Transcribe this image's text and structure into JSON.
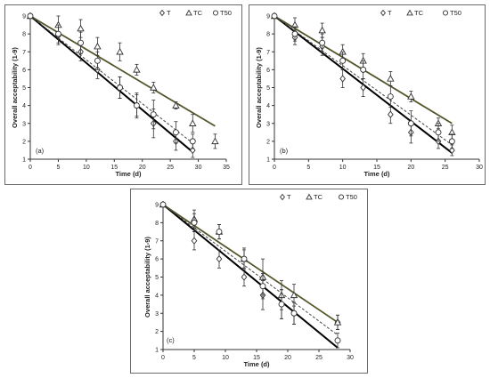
{
  "colors": {
    "T": "#000000",
    "TC": "#55552b",
    "T50": "#444444",
    "marker": "#333333",
    "axis": "#333333",
    "frame": "#6b6b6b"
  },
  "chart_data": [
    {
      "id": "a",
      "type": "scatter",
      "panel_label": "(a)",
      "xlabel": "Time (d)",
      "ylabel": "Overall acceptability (1-9)",
      "xlim": [
        0,
        35
      ],
      "ylim": [
        1,
        9
      ],
      "xticks": [
        "0",
        "5",
        "10",
        "15",
        "20",
        "25",
        "30",
        "35"
      ],
      "yticks": [
        "1",
        "2",
        "3",
        "4",
        "5",
        "6",
        "7",
        "8",
        "9"
      ],
      "legend": [
        "T",
        "TC",
        "T50"
      ],
      "legend_position": "top-right",
      "series": [
        {
          "name": "T",
          "marker": "diamond",
          "x": [
            0,
            5,
            9,
            12,
            16,
            19,
            22,
            26,
            29
          ],
          "y": [
            9,
            7.9,
            7.0,
            6.0,
            5.0,
            4.0,
            3.0,
            2.0,
            1.5
          ],
          "err": [
            0,
            0.5,
            0.5,
            0.5,
            0.6,
            0.6,
            0.8,
            0.5,
            0.4
          ],
          "fit": [
            [
              0,
              9.0
            ],
            [
              29,
              1.4
            ]
          ],
          "line": "solid-thick"
        },
        {
          "name": "TC",
          "marker": "triangle",
          "x": [
            0,
            5,
            9,
            12,
            16,
            19,
            22,
            26,
            29,
            33
          ],
          "y": [
            9,
            8.5,
            8.3,
            7.3,
            7.0,
            6.0,
            5.0,
            4.0,
            3.0,
            2.0
          ],
          "err": [
            0,
            0.5,
            0.5,
            0.5,
            0.5,
            0.3,
            0.3,
            0.2,
            0.5,
            0.4
          ],
          "fit": [
            [
              0,
              9.0
            ],
            [
              33,
              2.85
            ]
          ],
          "line": "solid"
        },
        {
          "name": "T50",
          "marker": "circle",
          "x": [
            0,
            5,
            9,
            12,
            16,
            19,
            22,
            26,
            29
          ],
          "y": [
            9,
            8.0,
            7.5,
            6.5,
            5.0,
            4.0,
            3.5,
            2.5,
            2.0
          ],
          "err": [
            0,
            0.5,
            0.6,
            0.5,
            0.6,
            0.7,
            0.8,
            0.6,
            0.4
          ],
          "fit": [
            [
              0,
              9.0
            ],
            [
              29,
              1.9
            ]
          ],
          "line": "dashed"
        }
      ]
    },
    {
      "id": "b",
      "type": "scatter",
      "panel_label": "(b)",
      "xlabel": "Time (d)",
      "ylabel": "Overall acceptability (1-9)",
      "xlim": [
        0,
        30
      ],
      "ylim": [
        1,
        9
      ],
      "xticks": [
        "0",
        "5",
        "10",
        "15",
        "20",
        "25",
        "30"
      ],
      "yticks": [
        "1",
        "2",
        "3",
        "4",
        "5",
        "6",
        "7",
        "8",
        "9"
      ],
      "legend": [
        "T",
        "TC",
        "T50"
      ],
      "legend_position": "top-right",
      "series": [
        {
          "name": "T",
          "marker": "diamond",
          "x": [
            0,
            3,
            7,
            10,
            13,
            17,
            20,
            24,
            26
          ],
          "y": [
            9,
            7.8,
            7.3,
            5.5,
            5.0,
            3.5,
            2.5,
            2.0,
            1.5
          ],
          "err": [
            0,
            0.4,
            0.5,
            0.5,
            0.5,
            0.5,
            0.6,
            0.4,
            0.3
          ],
          "fit": [
            [
              0,
              9.0
            ],
            [
              26,
              1.35
            ]
          ],
          "line": "solid-thick"
        },
        {
          "name": "TC",
          "marker": "triangle",
          "x": [
            0,
            3,
            7,
            10,
            13,
            17,
            20,
            24,
            26
          ],
          "y": [
            9,
            8.5,
            8.2,
            7.0,
            6.5,
            5.5,
            4.5,
            3.0,
            2.5
          ],
          "err": [
            0,
            0.4,
            0.4,
            0.4,
            0.4,
            0.4,
            0.3,
            0.3,
            0.4
          ],
          "fit": [
            [
              0,
              9.0
            ],
            [
              26,
              3.0
            ]
          ],
          "line": "solid"
        },
        {
          "name": "T50",
          "marker": "circle",
          "x": [
            0,
            3,
            7,
            10,
            13,
            17,
            20,
            24,
            26
          ],
          "y": [
            9,
            8.0,
            7.5,
            6.5,
            6.0,
            4.5,
            3.0,
            2.5,
            2.0
          ],
          "err": [
            0,
            0.4,
            0.5,
            0.5,
            0.5,
            0.6,
            0.7,
            0.5,
            0.4
          ],
          "fit": [
            [
              0,
              9.0
            ],
            [
              26,
              1.8
            ]
          ],
          "line": "dashed"
        }
      ]
    },
    {
      "id": "c",
      "type": "scatter",
      "panel_label": "(c)",
      "xlabel": "Time (d)",
      "ylabel": "Overall acceptability (1-9)",
      "xlim": [
        0,
        30
      ],
      "ylim": [
        1,
        9
      ],
      "xticks": [
        "0",
        "5",
        "10",
        "15",
        "20",
        "25",
        "30"
      ],
      "yticks": [
        "1",
        "2",
        "3",
        "4",
        "5",
        "6",
        "7",
        "8",
        "9"
      ],
      "legend": [
        "T",
        "TC",
        "T50"
      ],
      "legend_position": "top-right",
      "series": [
        {
          "name": "T",
          "marker": "diamond",
          "x": [
            0,
            5,
            9,
            13,
            16,
            19,
            21,
            28
          ],
          "y": [
            9,
            7.0,
            6.0,
            5.0,
            4.0,
            3.5,
            3.0,
            2.5
          ],
          "err": [
            0,
            0.5,
            0.5,
            0.5,
            0.8,
            0.8,
            0.6,
            0.4
          ],
          "fit": [
            [
              0,
              9.0
            ],
            [
              28,
              1.1
            ]
          ],
          "line": "solid-thick"
        },
        {
          "name": "TC",
          "marker": "triangle",
          "x": [
            0,
            5,
            9,
            13,
            16,
            19,
            21,
            28
          ],
          "y": [
            9,
            8.2,
            7.5,
            6.0,
            5.0,
            4.0,
            4.0,
            2.5
          ],
          "err": [
            0,
            0.5,
            0.4,
            0.6,
            1.0,
            0.8,
            0.6,
            0.4
          ],
          "fit": [
            [
              0,
              9.0
            ],
            [
              28,
              2.5
            ]
          ],
          "line": "solid"
        },
        {
          "name": "T50",
          "marker": "circle",
          "x": [
            0,
            5,
            9,
            13,
            16,
            19,
            21,
            28
          ],
          "y": [
            9,
            8.0,
            7.5,
            6.0,
            4.5,
            3.5,
            3.0,
            1.5
          ],
          "err": [
            0,
            0.5,
            0.4,
            0.5,
            0.7,
            0.8,
            0.6,
            0.4
          ],
          "fit": [
            [
              0,
              9.0
            ],
            [
              28,
              1.8
            ]
          ],
          "line": "dashed"
        }
      ]
    }
  ]
}
